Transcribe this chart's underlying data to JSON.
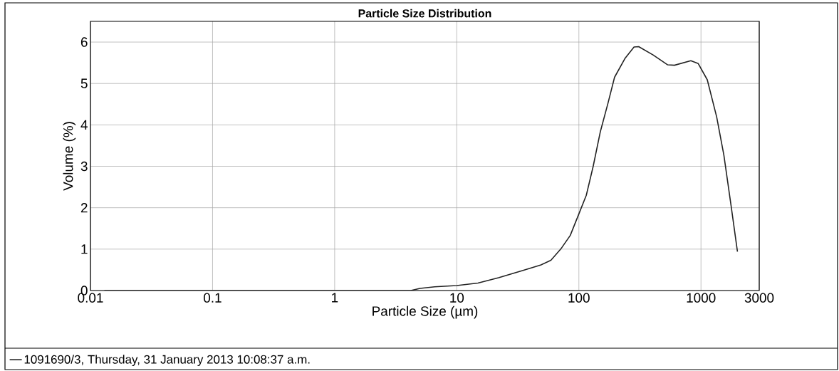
{
  "chart_data": {
    "type": "line",
    "title": "Particle Size Distribution",
    "xlabel": "Particle Size (µm)",
    "ylabel": "Volume (%)",
    "log": "x",
    "grid": true,
    "legend": "bottom left",
    "xlim": [
      0.01,
      3000
    ],
    "ylim": [
      0,
      6.5
    ],
    "xticks": [
      0.01,
      0.1,
      1,
      10,
      100,
      1000,
      3000
    ],
    "yticks": [
      0,
      1,
      2,
      3,
      4,
      5,
      6
    ],
    "series": [
      {
        "name": "1091690/3, Thursday, 31 January 2013 10:08:37 a.m.",
        "color": "#222222",
        "x": [
          0.013,
          1,
          4.2,
          5.0,
          6.6,
          10,
          14.9,
          22,
          34.5,
          49,
          59,
          71,
          85,
          100,
          115,
          131,
          150,
          173,
          196,
          238,
          283,
          309,
          405,
          534,
          606,
          826,
          950,
          1126,
          1345,
          1540,
          1770,
          1990
        ],
        "values": [
          0,
          0,
          0,
          0.05,
          0.09,
          0.12,
          0.18,
          0.31,
          0.48,
          0.62,
          0.73,
          1.0,
          1.33,
          1.85,
          2.3,
          3.0,
          3.84,
          4.52,
          5.15,
          5.6,
          5.88,
          5.89,
          5.69,
          5.45,
          5.44,
          5.55,
          5.48,
          5.09,
          4.19,
          3.27,
          2.02,
          0.94
        ]
      }
    ]
  }
}
